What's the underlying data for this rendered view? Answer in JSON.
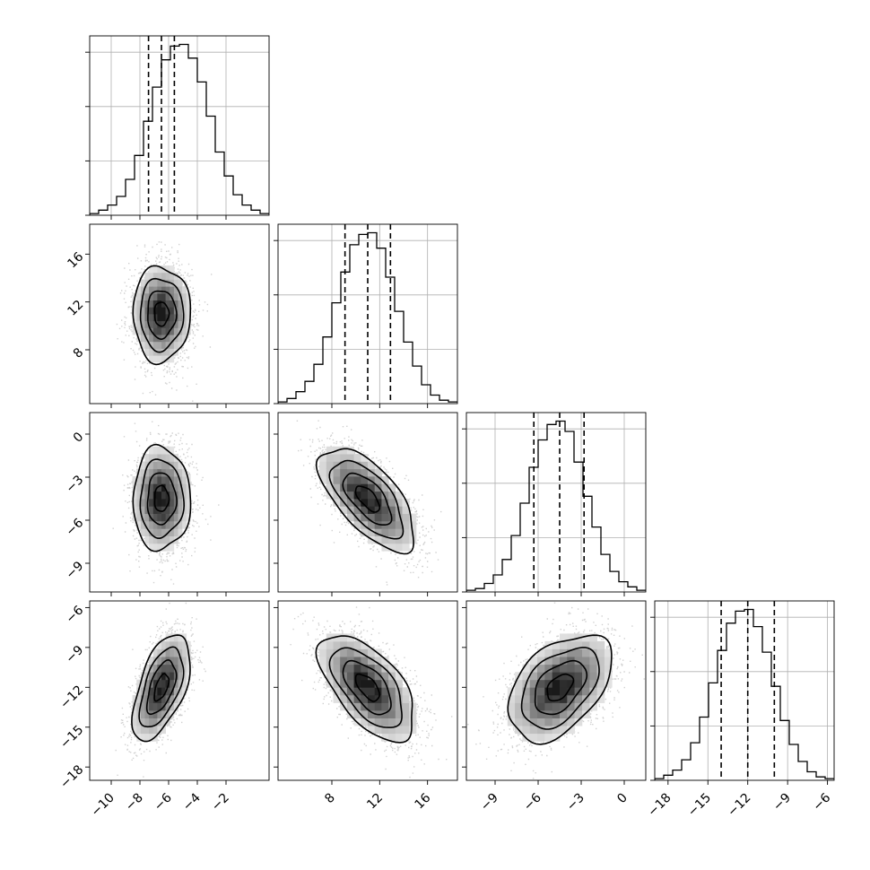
{
  "chart_data": {
    "type": "corner",
    "n_params": 4,
    "colors": {
      "contour": "#000000",
      "scatter": "#9a9a9a",
      "grid": "#b0b0b0",
      "density_dark": "#1a1a1a"
    },
    "params": [
      {
        "mean": -6.5,
        "std": 1.0,
        "range": [
          -11.5,
          1.0
        ],
        "ticks": [
          -10,
          -8,
          -6,
          -4,
          -2
        ],
        "tick_labels": [
          "−10",
          "−8",
          "−6",
          "−4",
          "−2"
        ],
        "quantiles": [
          -7.4,
          -6.5,
          -5.6
        ]
      },
      {
        "mean": 11.0,
        "std": 2.0,
        "range": [
          3.5,
          18.5
        ],
        "ticks": [
          8,
          12,
          16
        ],
        "tick_labels": [
          "8",
          "12",
          "16"
        ],
        "quantiles": [
          9.1,
          11.0,
          12.9
        ]
      },
      {
        "mean": -4.5,
        "std": 1.8,
        "range": [
          -11.0,
          1.5
        ],
        "ticks": [
          -9,
          -6,
          -3,
          0
        ],
        "tick_labels": [
          "−9",
          "−6",
          "−3",
          "0"
        ],
        "quantiles": [
          -6.3,
          -4.5,
          -2.8
        ]
      },
      {
        "mean": -12.0,
        "std": 2.0,
        "range": [
          -19.0,
          -5.5
        ],
        "ticks": [
          -18,
          -15,
          -12,
          -9,
          -6
        ],
        "tick_labels": [
          "−18",
          "−15",
          "−12",
          "−9",
          "−6"
        ],
        "quantiles": [
          -14.0,
          -12.0,
          -10.0
        ]
      }
    ],
    "correlations": [
      [
        0,
        1,
        0.0
      ],
      [
        0,
        2,
        0.0
      ],
      [
        0,
        3,
        0.55
      ],
      [
        1,
        2,
        -0.65
      ],
      [
        1,
        3,
        -0.6
      ],
      [
        2,
        3,
        0.45
      ]
    ],
    "histograms": [
      [
        0.1,
        0.3,
        0.6,
        1.1,
        2.1,
        3.5,
        5.5,
        7.5,
        9.1,
        9.9,
        10.0,
        9.2,
        7.8,
        5.8,
        3.7,
        2.3,
        1.2,
        0.6,
        0.3,
        0.1
      ],
      [
        0.1,
        0.3,
        0.7,
        1.3,
        2.3,
        3.9,
        5.9,
        7.7,
        9.3,
        9.9,
        10.0,
        9.1,
        7.4,
        5.4,
        3.6,
        2.2,
        1.1,
        0.5,
        0.2,
        0.1
      ],
      [
        0.1,
        0.2,
        0.5,
        1.0,
        1.9,
        3.3,
        5.2,
        7.3,
        8.9,
        9.8,
        10.0,
        9.4,
        7.6,
        5.6,
        3.8,
        2.2,
        1.2,
        0.6,
        0.3,
        0.1
      ],
      [
        0.1,
        0.3,
        0.6,
        1.2,
        2.2,
        3.7,
        5.7,
        7.6,
        9.2,
        9.9,
        10.0,
        9.0,
        7.5,
        5.5,
        3.5,
        2.1,
        1.1,
        0.5,
        0.2,
        0.1
      ]
    ]
  }
}
